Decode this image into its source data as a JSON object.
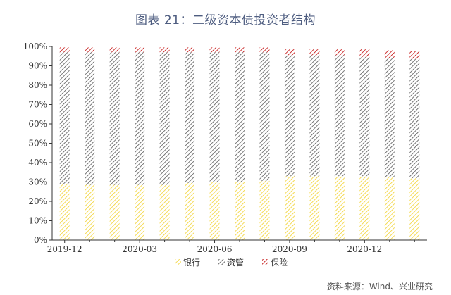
{
  "chart_data": {
    "type": "bar",
    "stacked": true,
    "title": "图表 21：二级资本债投资者结构",
    "source": "资料来源：Wind、兴业研究",
    "xlabel": "",
    "ylabel": "",
    "ylim": [
      0,
      100
    ],
    "y_ticks": [
      "0%",
      "10%",
      "20%",
      "30%",
      "40%",
      "50%",
      "60%",
      "70%",
      "80%",
      "90%",
      "100%"
    ],
    "x_tick_labels": [
      "2019-12",
      "2020-03",
      "2020-06",
      "2020-09",
      "2020-12"
    ],
    "legend_position": "bottom",
    "grid": false,
    "series": [
      {
        "name": "银行",
        "color": "#f2d22e",
        "values": [
          29,
          28.5,
          28.5,
          28.5,
          28.5,
          29.5,
          30,
          30,
          30.5,
          33,
          33,
          33,
          33,
          32.5,
          32
        ]
      },
      {
        "name": "资管",
        "color": "#555555",
        "values": [
          68,
          68.5,
          68.5,
          68.5,
          68.5,
          67.5,
          67,
          67,
          66.5,
          62.5,
          62.5,
          62.5,
          61.5,
          61.5,
          61.5
        ]
      },
      {
        "name": "保险",
        "color": "#c00000",
        "values": [
          2.5,
          2.5,
          2.5,
          2.5,
          2.5,
          2.5,
          2.5,
          2.5,
          2.5,
          3,
          3,
          3,
          4,
          4,
          4
        ]
      }
    ]
  }
}
